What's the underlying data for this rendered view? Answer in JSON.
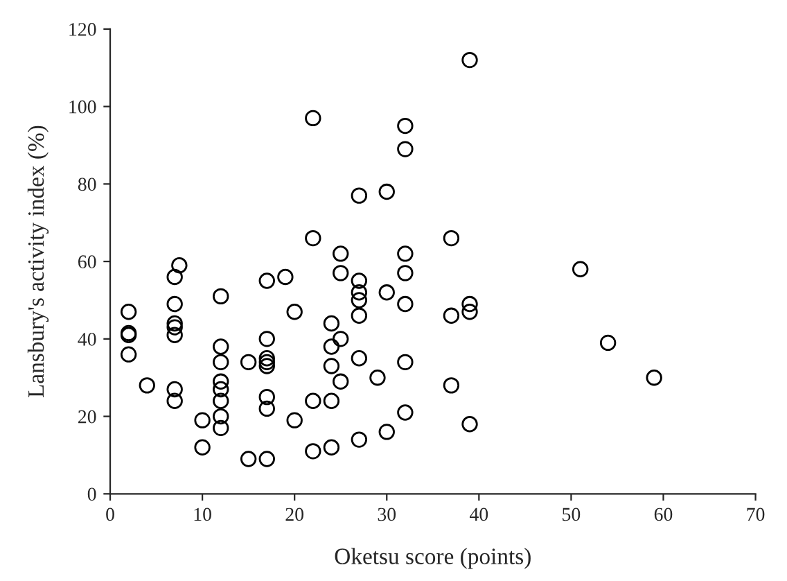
{
  "chart_data": {
    "type": "scatter",
    "xlabel": "Oketsu score (points)",
    "ylabel": "Lansbury's activity index (%)",
    "x": [
      2,
      2,
      2,
      2,
      4,
      7,
      7.5,
      7,
      7,
      7,
      7,
      7,
      7,
      10,
      10,
      12,
      12,
      12,
      12,
      12,
      12,
      12,
      12,
      15,
      15,
      17,
      17,
      17,
      17,
      17,
      17,
      17,
      17,
      19,
      20,
      20,
      22,
      22,
      22,
      22,
      24,
      24,
      24,
      24,
      24,
      25,
      25,
      25,
      25,
      27,
      27,
      27,
      27,
      27,
      27,
      27,
      29,
      30,
      30,
      30,
      32,
      32,
      32,
      32,
      32,
      32,
      32,
      37,
      37,
      37,
      39,
      39,
      39,
      39,
      51,
      54,
      59
    ],
    "values": [
      47,
      41,
      41.5,
      36,
      28,
      56,
      59,
      49,
      44,
      43,
      41,
      27,
      24,
      19,
      12,
      51,
      38,
      34,
      29,
      27,
      24,
      20,
      17,
      34,
      9,
      55,
      40,
      35,
      34,
      33,
      25,
      22,
      9,
      56,
      47,
      19,
      97,
      66,
      24,
      11,
      44,
      38,
      33,
      24,
      12,
      62,
      57,
      40,
      29,
      77,
      55,
      52,
      50,
      46,
      35,
      14,
      30,
      78,
      52,
      16,
      95,
      89,
      62,
      57,
      49,
      34,
      21,
      66,
      46,
      28,
      112,
      49,
      47,
      18,
      58,
      39,
      30
    ],
    "color": "#000000",
    "marker": "circle",
    "xlim": [
      0,
      70
    ],
    "xticks": [
      0,
      10,
      20,
      30,
      40,
      50,
      60,
      70
    ],
    "ylim": [
      0,
      120
    ],
    "yticks": [
      0,
      20,
      40,
      60,
      80,
      100,
      120
    ],
    "grid": false,
    "legend": false
  }
}
